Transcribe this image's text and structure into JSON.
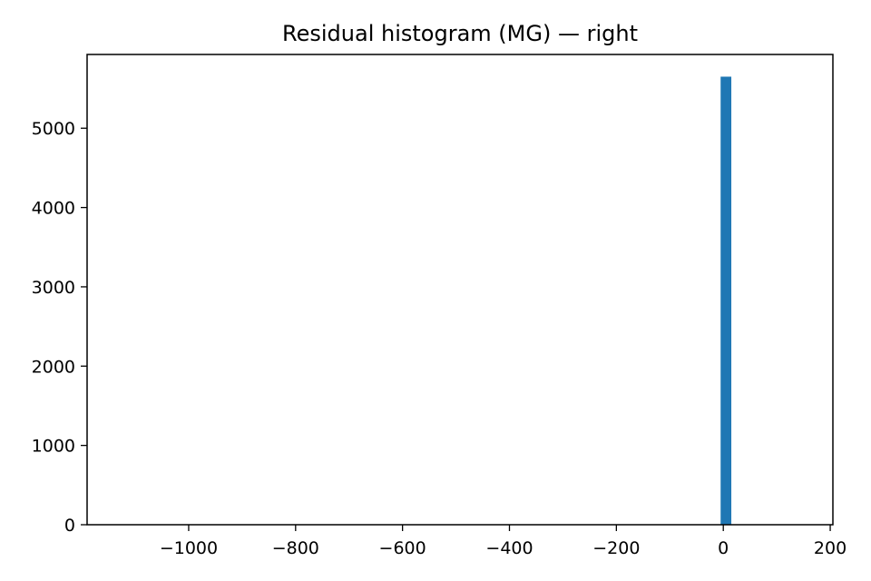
{
  "chart_data": {
    "type": "bar",
    "title": "Residual histogram (MG) — right",
    "xlabel": "",
    "ylabel": "",
    "xlim": [
      -1190,
      205
    ],
    "ylim": [
      0,
      5930
    ],
    "x_ticks": [
      -1000,
      -800,
      -600,
      -400,
      -200,
      0,
      200
    ],
    "x_tick_labels": [
      "−1000",
      "−800",
      "−600",
      "−400",
      "−200",
      "0",
      "200"
    ],
    "y_ticks": [
      0,
      1000,
      2000,
      3000,
      4000,
      5000
    ],
    "y_tick_labels": [
      "0",
      "1000",
      "2000",
      "3000",
      "4000",
      "5000"
    ],
    "bins": [
      {
        "x0": -5,
        "x1": 15,
        "count": 5650
      }
    ],
    "bar_color": "#1f77b4",
    "grid": false,
    "legend": "none"
  }
}
